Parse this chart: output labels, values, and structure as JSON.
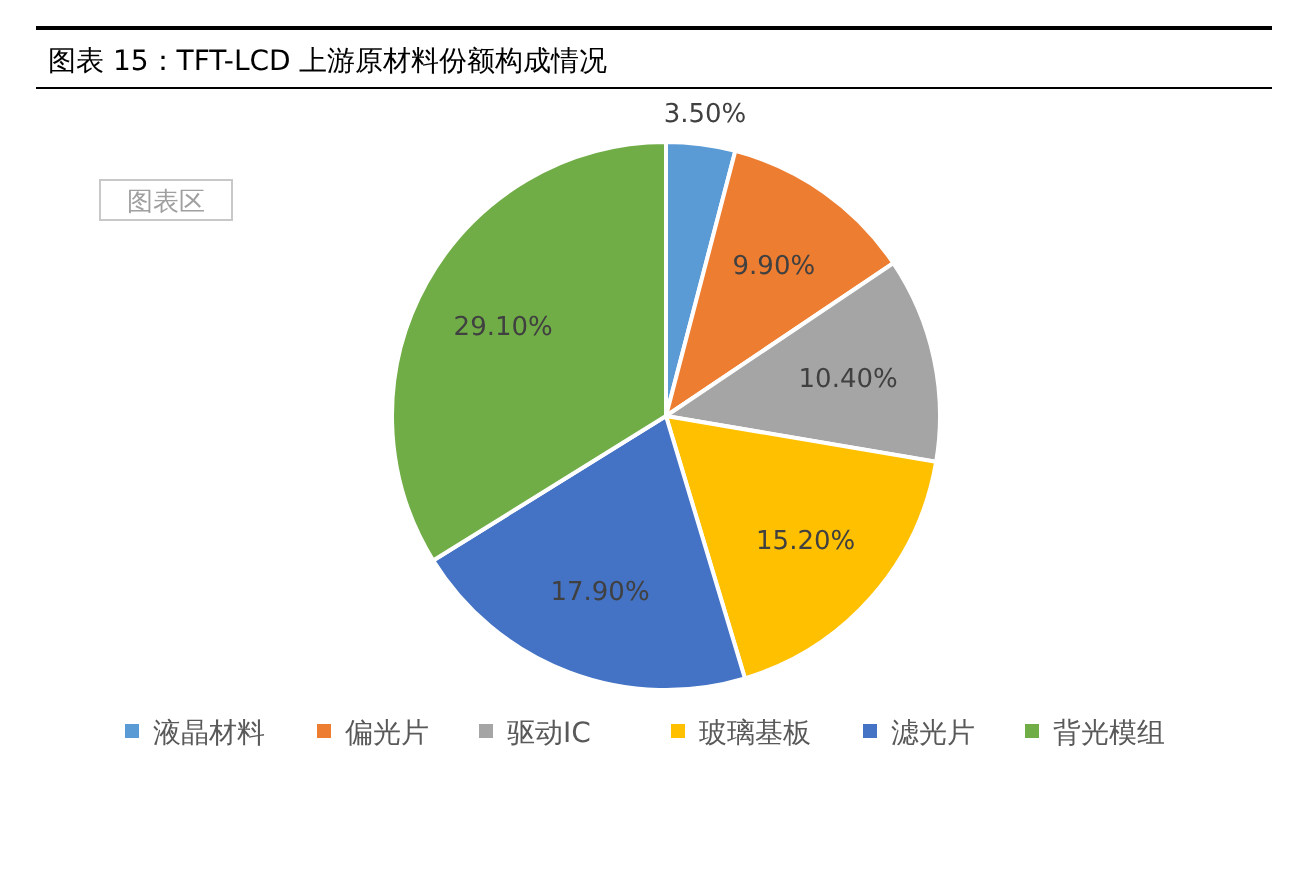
{
  "chart_data": {
    "type": "pie",
    "title": "图表 15：TFT-LCD 上游原材料份额构成情况",
    "categories": [
      "液晶材料",
      "偏光片",
      "驱动IC",
      "玻璃基板",
      "滤光片",
      "背光模组"
    ],
    "values": [
      3.5,
      9.9,
      10.4,
      15.2,
      17.9,
      29.1
    ],
    "value_labels": [
      "3.50%",
      "9.90%",
      "10.40%",
      "15.20%",
      "17.90%",
      "29.10%"
    ],
    "colors": [
      "#5b9bd5",
      "#ed7d31",
      "#a5a5a5",
      "#ffc000",
      "#4472c4",
      "#70ad47"
    ],
    "legend": "bottom",
    "annotations": [
      "图表区"
    ]
  }
}
